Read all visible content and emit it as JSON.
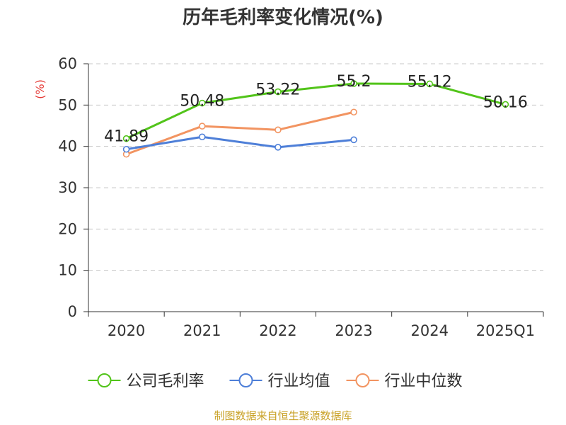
{
  "source_note": "制图数据来自恒生聚源数据库",
  "chart_data": {
    "type": "line",
    "title": "历年毛利率变化情况(%)",
    "ylabel": "(%)",
    "xlabel": "",
    "categories": [
      "2020",
      "2021",
      "2022",
      "2023",
      "2024",
      "2025Q1"
    ],
    "ylim": [
      0,
      60
    ],
    "yticks": [
      0,
      10,
      20,
      30,
      40,
      50,
      60
    ],
    "grid": true,
    "legend_position": "bottom",
    "series": [
      {
        "name": "公司毛利率",
        "color": "#52c41a",
        "values": [
          41.89,
          50.48,
          53.22,
          55.2,
          55.12,
          50.16
        ],
        "labels": [
          "41.89",
          "50.48",
          "53.22",
          "55.2",
          "55.12",
          "50.16"
        ]
      },
      {
        "name": "行业均值",
        "color": "#4e7fd8",
        "values": [
          39.3,
          42.3,
          39.8,
          41.6,
          null,
          null
        ]
      },
      {
        "name": "行业中位数",
        "color": "#f29461",
        "values": [
          38.1,
          44.9,
          44.0,
          48.3,
          null,
          null
        ]
      }
    ]
  }
}
